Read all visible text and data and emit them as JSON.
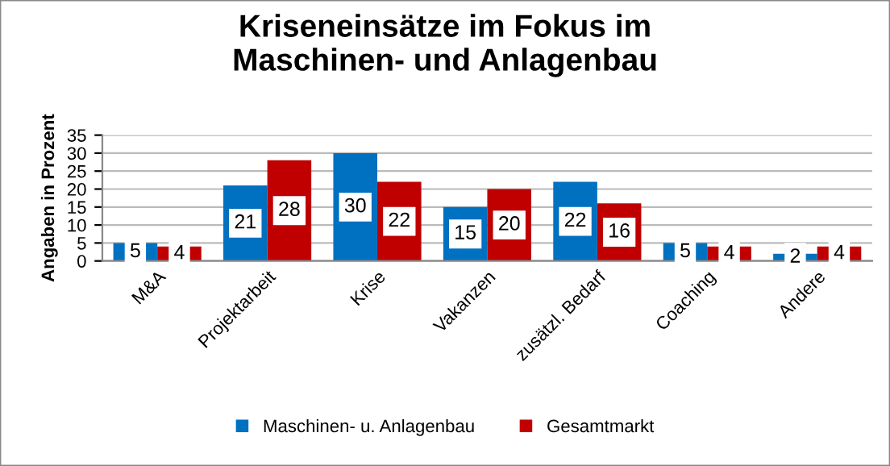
{
  "chart_data": {
    "type": "bar",
    "title": "Kriseneinsätze im Fokus im\nMaschinen- und Anlagenbau",
    "ylabel": "Angaben in Prozent",
    "categories": [
      "M&A",
      "Projektarbeit",
      "Krise",
      "Vakanzen",
      "zusätzl. Bedarf",
      "Coaching",
      "Andere"
    ],
    "series": [
      {
        "name": "Maschinen- u. Anlagenbau",
        "color": "#0070c0",
        "values": [
          5,
          21,
          30,
          15,
          22,
          5,
          2
        ]
      },
      {
        "name": "Gesamtmarkt",
        "color": "#c00000",
        "values": [
          4,
          28,
          22,
          20,
          16,
          4,
          4
        ]
      }
    ],
    "ylim": [
      0,
      35
    ],
    "yticks": [
      0,
      5,
      10,
      15,
      20,
      25,
      30,
      35
    ],
    "grid": "y",
    "legend": "bottom",
    "data_labels": true
  }
}
